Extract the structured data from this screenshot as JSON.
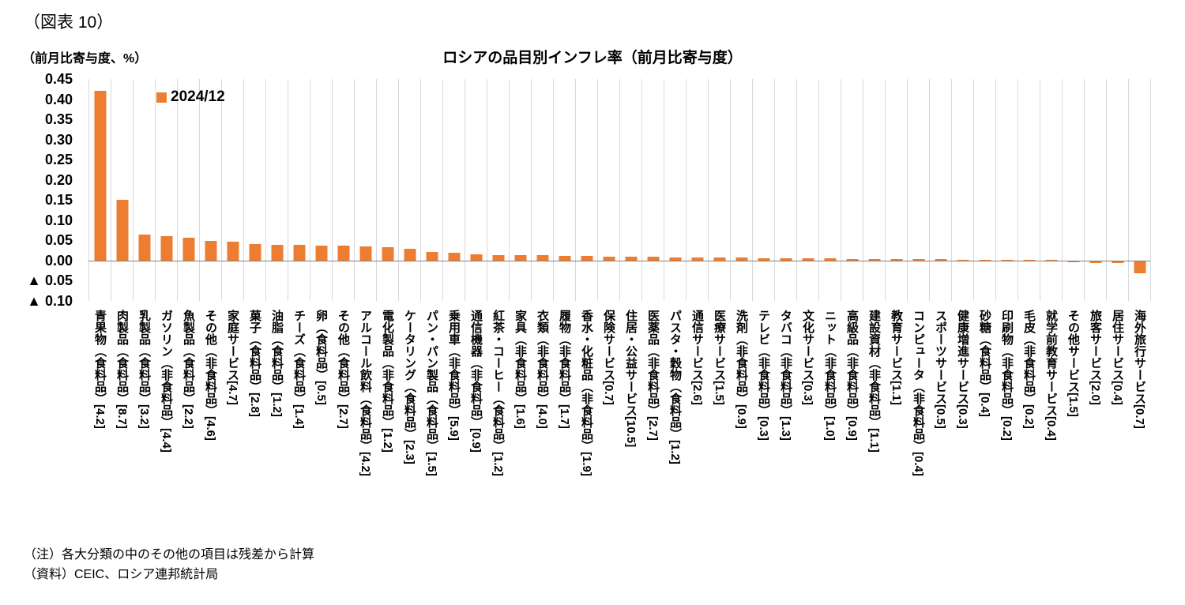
{
  "figure_label": "（図表 10）",
  "axis_unit_label": "（前月比寄与度、%）",
  "notes": [
    "（注）各大分類の中のその他の項目は残差から計算",
    "（資料）CEIC、ロシア連邦統計局"
  ],
  "chart_data": {
    "type": "bar",
    "title": "ロシアの品目別インフレ率（前月比寄与度）",
    "ylabel": "前月比寄与度、%",
    "legend": [
      "2024/12"
    ],
    "legend_position": "top-left-inside",
    "bar_color": "#ED7D31",
    "gridlines": "vertical",
    "ylim": [
      -0.1,
      0.45
    ],
    "yticks": [
      {
        "value": 0.45,
        "label": "0.45"
      },
      {
        "value": 0.4,
        "label": "0.40"
      },
      {
        "value": 0.35,
        "label": "0.35"
      },
      {
        "value": 0.3,
        "label": "0.30"
      },
      {
        "value": 0.25,
        "label": "0.25"
      },
      {
        "value": 0.2,
        "label": "0.20"
      },
      {
        "value": 0.15,
        "label": "0.15"
      },
      {
        "value": 0.1,
        "label": "0.10"
      },
      {
        "value": 0.05,
        "label": "0.05"
      },
      {
        "value": 0.0,
        "label": "0.00"
      },
      {
        "value": -0.05,
        "label": "▲ 0.05"
      },
      {
        "value": -0.1,
        "label": "▲ 0.10"
      }
    ],
    "categories": [
      "青果物（食料品）[4.2]",
      "肉製品（食料品）[8.7]",
      "乳製品（食料品）[3.2]",
      "ガソリン（非食料品）[4.4]",
      "魚製品（食料品）[2.2]",
      "その他（非食料品）[4.6]",
      "家庭サービス[4.7]",
      "菓子（食料品）[2.8]",
      "油脂（食料品）[1.2]",
      "チーズ（食料品）[1.4]",
      "卵（食料品）[0.5]",
      "その他（食料品）[2.7]",
      "アルコール飲料（食料品）[4.2]",
      "電化製品（非食料品）[1.2]",
      "ケータリング（食料品）[2.3]",
      "パン・パン製品（食料品）[1.5]",
      "乗用車（非食料品）[5.9]",
      "通信機器（非食料品）[0.9]",
      "紅茶・コーヒー（食料品）[1.2]",
      "家具（非食料品）[1.6]",
      "衣類（非食料品）[4.0]",
      "履物（非食料品）[1.7]",
      "香水・化粧品（非食料品）[1.9]",
      "保険サービス[0.7]",
      "住居・公益サービス[10.5]",
      "医薬品（非食料品）[2.7]",
      "パスタ・穀物（食料品）[1.2]",
      "通信サービス[2.6]",
      "医療サービス[1.5]",
      "洗剤（非食料品）[0.9]",
      "テレビ（非食料品）[0.3]",
      "タバコ（非食料品）[1.3]",
      "文化サービス[0.3]",
      "ニット（非食料品）[1.0]",
      "高級品（非食料品）[0.9]",
      "建設資材（非食料品）[1.1]",
      "教育サービス[1.1]",
      "コンピュータ（非食料品）[0.4]",
      "スポーツサービス[0.5]",
      "健康増進サービス[0.3]",
      "砂糖（食料品）[0.4]",
      "印刷物（非食料品）[0.2]",
      "毛皮（非食料品）[0.2]",
      "就学前教育サービス[0.4]",
      "その他サービス[1.5]",
      "旅客サービス[2.0]",
      "居住サービス[0.4]",
      "海外旅行サービス[0.7]"
    ],
    "values": [
      0.42,
      0.15,
      0.065,
      0.061,
      0.057,
      0.049,
      0.047,
      0.042,
      0.04,
      0.039,
      0.038,
      0.037,
      0.035,
      0.033,
      0.029,
      0.022,
      0.02,
      0.016,
      0.014,
      0.013,
      0.013,
      0.012,
      0.012,
      0.01,
      0.01,
      0.009,
      0.008,
      0.008,
      0.008,
      0.007,
      0.006,
      0.006,
      0.005,
      0.005,
      0.004,
      0.004,
      0.004,
      0.003,
      0.003,
      0.002,
      0.002,
      0.002,
      0.001,
      0.001,
      -0.002,
      -0.003,
      -0.003,
      -0.03
    ]
  }
}
